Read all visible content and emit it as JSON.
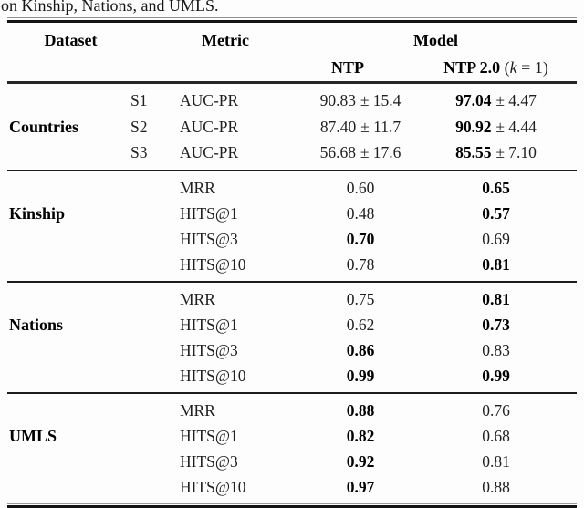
{
  "caption": "on Kinship, Nations, and UMLS.",
  "header": {
    "dataset": "Dataset",
    "metric": "Metric",
    "model": "Model",
    "ntp": "NTP",
    "ntp2": {
      "name": "NTP 2.0",
      "open": " (",
      "k": "k",
      "close": " = 1)"
    }
  },
  "sections": [
    {
      "dataset": "Countries",
      "rows": [
        {
          "sub": "S1",
          "metric": "AUC-PR",
          "ntp": {
            "value": "90.83",
            "pm": "± 15.4",
            "bold": false
          },
          "ntp2": {
            "value": "97.04",
            "pm": "± 4.47",
            "bold": true
          }
        },
        {
          "sub": "S2",
          "metric": "AUC-PR",
          "ntp": {
            "value": "87.40",
            "pm": "± 11.7",
            "bold": false
          },
          "ntp2": {
            "value": "90.92",
            "pm": "± 4.44",
            "bold": true
          }
        },
        {
          "sub": "S3",
          "metric": "AUC-PR",
          "ntp": {
            "value": "56.68",
            "pm": "± 17.6",
            "bold": false
          },
          "ntp2": {
            "value": "85.55",
            "pm": "± 7.10",
            "bold": true
          }
        }
      ]
    },
    {
      "dataset": "Kinship",
      "rows": [
        {
          "sub": "",
          "metric": "MRR",
          "ntp": {
            "value": "0.60",
            "pm": "",
            "bold": false
          },
          "ntp2": {
            "value": "0.65",
            "pm": "",
            "bold": true
          }
        },
        {
          "sub": "",
          "metric": "HITS@1",
          "ntp": {
            "value": "0.48",
            "pm": "",
            "bold": false
          },
          "ntp2": {
            "value": "0.57",
            "pm": "",
            "bold": true
          }
        },
        {
          "sub": "",
          "metric": "HITS@3",
          "ntp": {
            "value": "0.70",
            "pm": "",
            "bold": true
          },
          "ntp2": {
            "value": "0.69",
            "pm": "",
            "bold": false
          }
        },
        {
          "sub": "",
          "metric": "HITS@10",
          "ntp": {
            "value": "0.78",
            "pm": "",
            "bold": false
          },
          "ntp2": {
            "value": "0.81",
            "pm": "",
            "bold": true
          }
        }
      ]
    },
    {
      "dataset": "Nations",
      "rows": [
        {
          "sub": "",
          "metric": "MRR",
          "ntp": {
            "value": "0.75",
            "pm": "",
            "bold": false
          },
          "ntp2": {
            "value": "0.81",
            "pm": "",
            "bold": true
          }
        },
        {
          "sub": "",
          "metric": "HITS@1",
          "ntp": {
            "value": "0.62",
            "pm": "",
            "bold": false
          },
          "ntp2": {
            "value": "0.73",
            "pm": "",
            "bold": true
          }
        },
        {
          "sub": "",
          "metric": "HITS@3",
          "ntp": {
            "value": "0.86",
            "pm": "",
            "bold": true
          },
          "ntp2": {
            "value": "0.83",
            "pm": "",
            "bold": false
          }
        },
        {
          "sub": "",
          "metric": "HITS@10",
          "ntp": {
            "value": "0.99",
            "pm": "",
            "bold": true
          },
          "ntp2": {
            "value": "0.99",
            "pm": "",
            "bold": true
          }
        }
      ]
    },
    {
      "dataset": "UMLS",
      "rows": [
        {
          "sub": "",
          "metric": "MRR",
          "ntp": {
            "value": "0.88",
            "pm": "",
            "bold": true
          },
          "ntp2": {
            "value": "0.76",
            "pm": "",
            "bold": false
          }
        },
        {
          "sub": "",
          "metric": "HITS@1",
          "ntp": {
            "value": "0.82",
            "pm": "",
            "bold": true
          },
          "ntp2": {
            "value": "0.68",
            "pm": "",
            "bold": false
          }
        },
        {
          "sub": "",
          "metric": "HITS@3",
          "ntp": {
            "value": "0.92",
            "pm": "",
            "bold": true
          },
          "ntp2": {
            "value": "0.81",
            "pm": "",
            "bold": false
          }
        },
        {
          "sub": "",
          "metric": "HITS@10",
          "ntp": {
            "value": "0.97",
            "pm": "",
            "bold": true
          },
          "ntp2": {
            "value": "0.88",
            "pm": "",
            "bold": false
          }
        }
      ]
    }
  ]
}
